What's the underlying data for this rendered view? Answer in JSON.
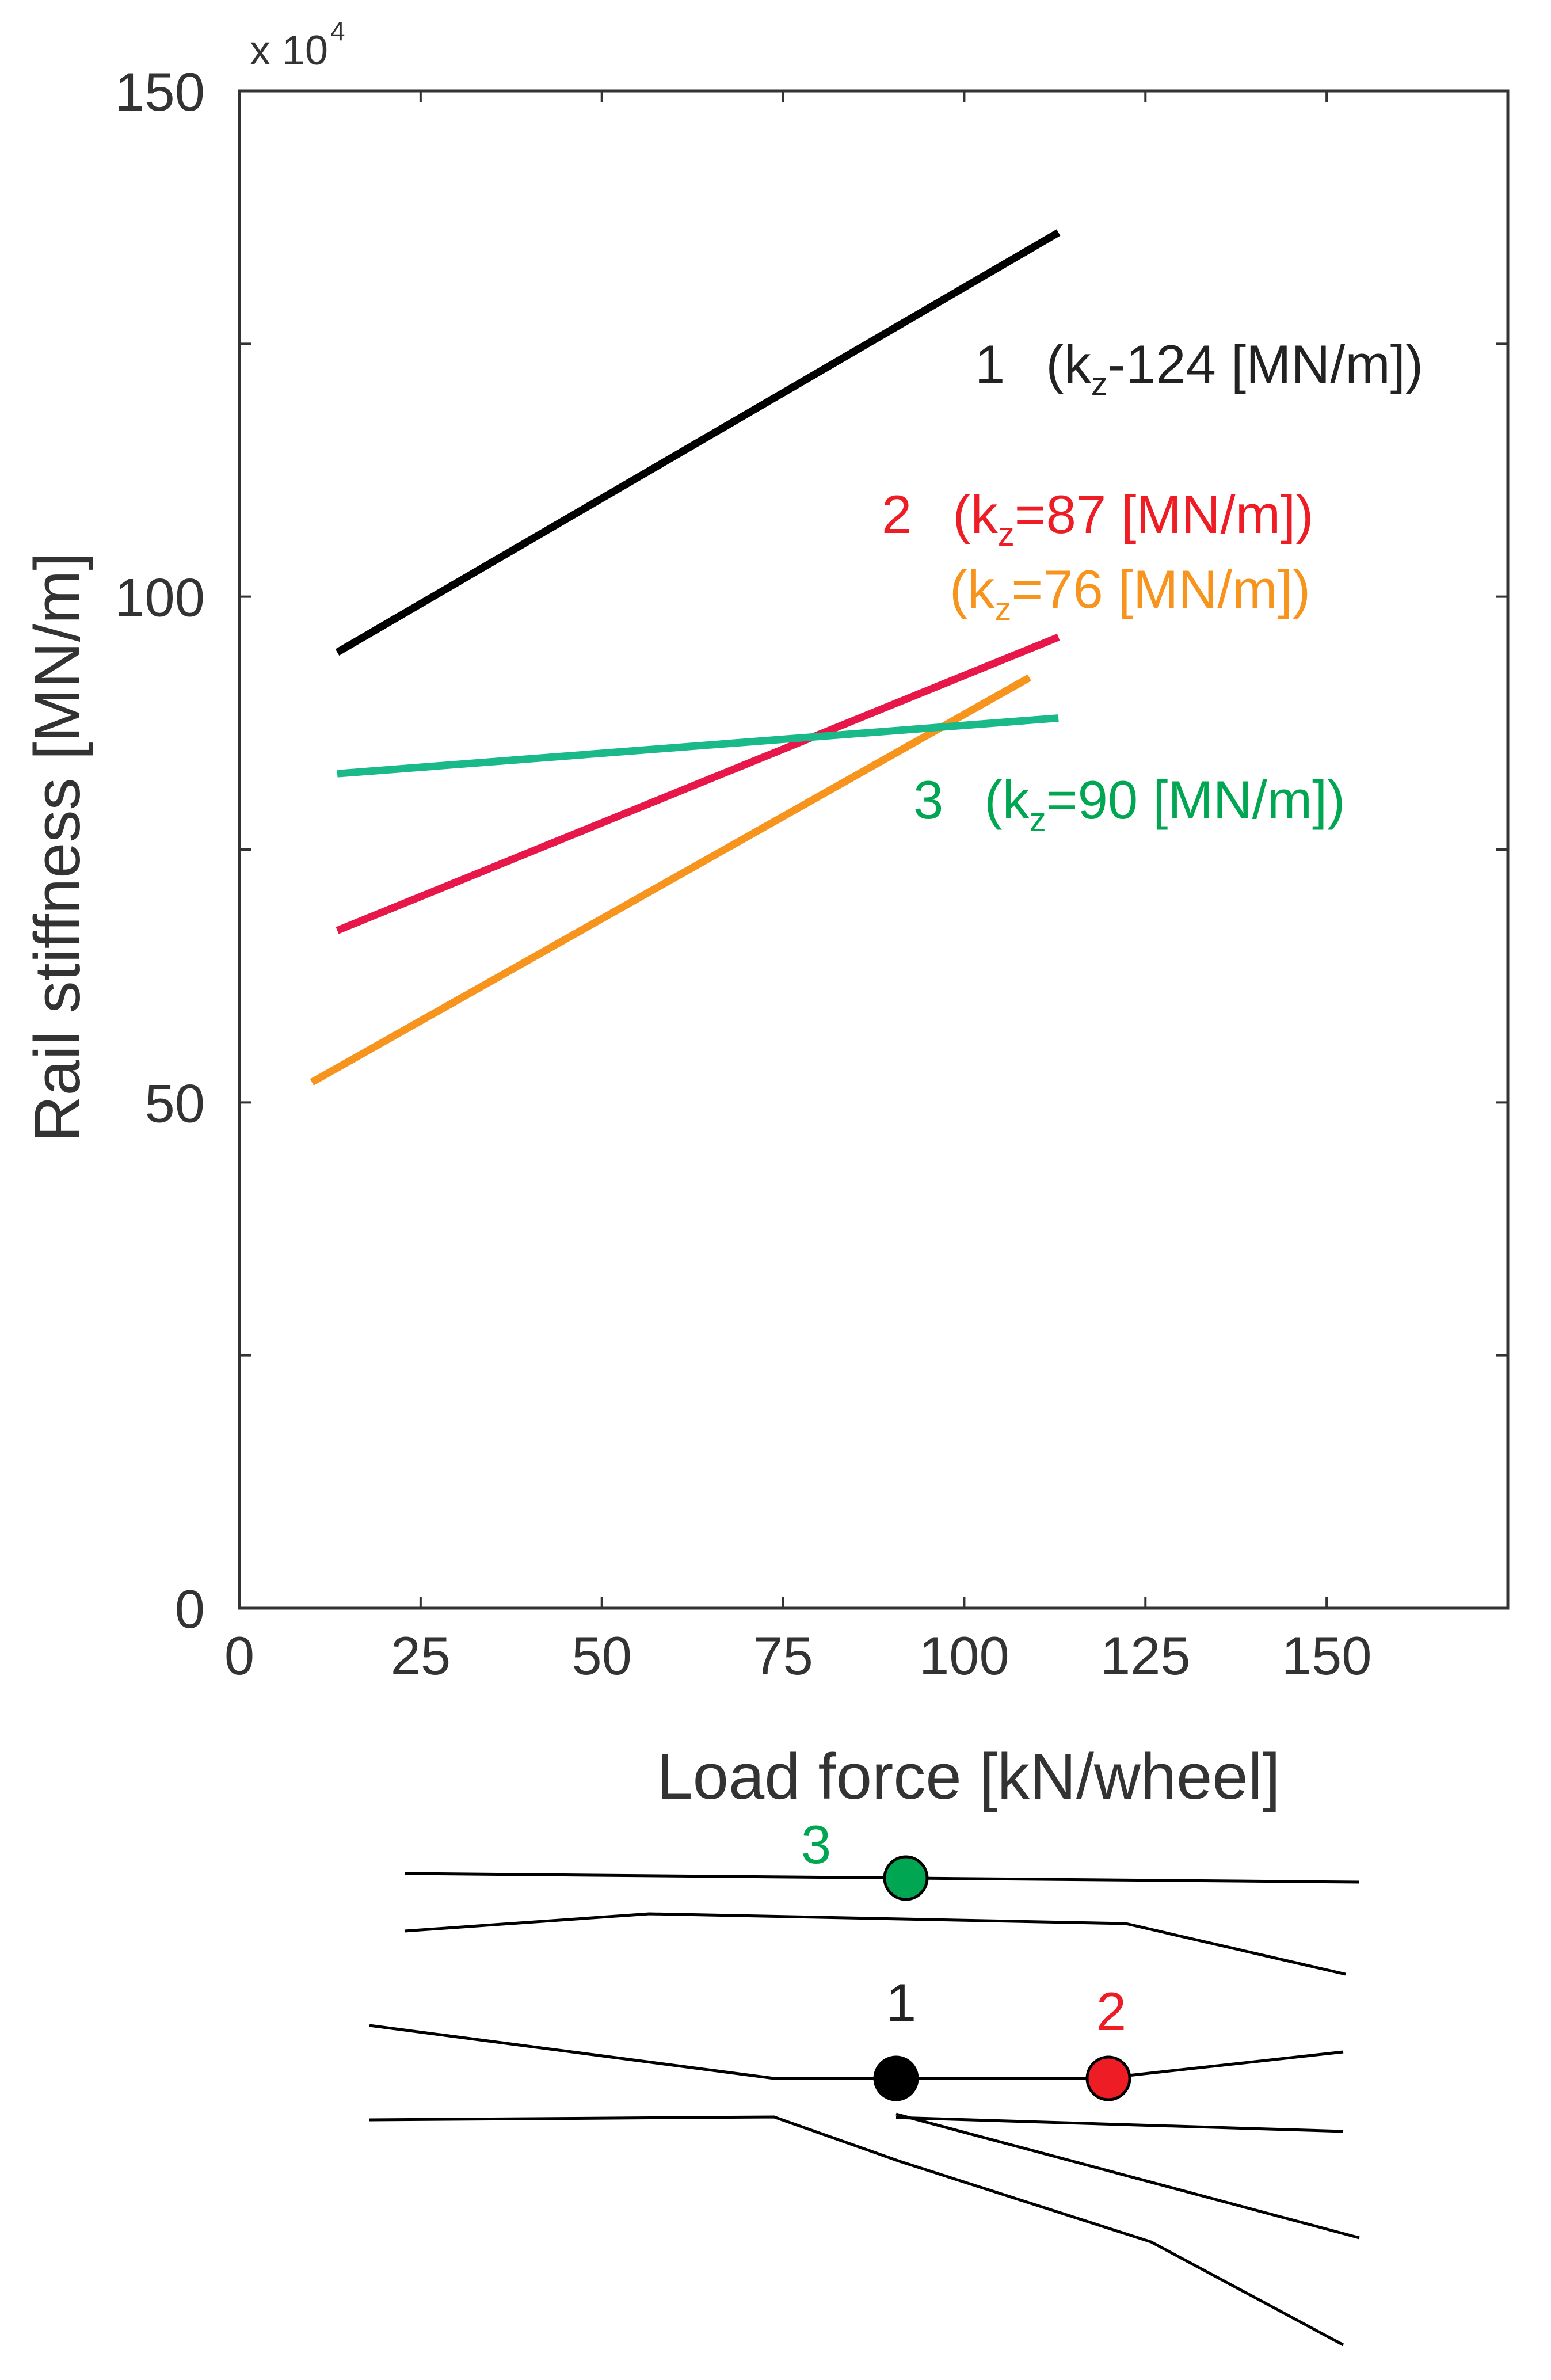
{
  "chart_data": {
    "type": "line",
    "title": "",
    "xlabel": "Load force [kN/wheel]",
    "ylabel": "Rail stiffness [MN/m]",
    "y_scale_note": "x 10",
    "y_scale_exponent": "4",
    "xlim": [
      0,
      175
    ],
    "ylim": [
      0,
      150
    ],
    "x_ticks": [
      0,
      25,
      50,
      75,
      100,
      125,
      150
    ],
    "x_tick_labels": [
      "0",
      "25",
      "50",
      "75",
      "100",
      "125",
      "150"
    ],
    "y_ticks": [
      0,
      25,
      50,
      75,
      100,
      125,
      150
    ],
    "y_tick_labels": [
      "0",
      "",
      "50",
      "",
      "100",
      "",
      "150"
    ],
    "grid": false,
    "series": [
      {
        "name": "1",
        "color": "#000000",
        "x": [
          13.5,
          113
        ],
        "y": [
          94.5,
          136
        ]
      },
      {
        "name": "2",
        "color": "#e8174a",
        "x": [
          13.5,
          113
        ],
        "y": [
          67,
          96
        ]
      },
      {
        "name": "2b",
        "color": "#f7941d",
        "x": [
          10,
          109
        ],
        "y": [
          52,
          92
        ]
      },
      {
        "name": "3",
        "color": "#1ab98a",
        "x": [
          13.5,
          113
        ],
        "y": [
          82.5,
          88
        ]
      }
    ],
    "annotations": [
      {
        "id": "1",
        "num": "1",
        "pre": "(k",
        "sub": "z",
        "post": "-124 [MN/m])",
        "color": "#222222"
      },
      {
        "id": "2",
        "num": "2",
        "pre": "(k",
        "sub": "z",
        "post": "=87 [MN/m])",
        "color": "#ee1c25"
      },
      {
        "id": "2b",
        "num": "",
        "pre": "(k",
        "sub": "z",
        "post": "=76 [MN/m])",
        "color": "#f7941d"
      },
      {
        "id": "3",
        "num": "3",
        "pre": "(k",
        "sub": "z",
        "post": "=90 [MN/m])",
        "color": "#00a651"
      }
    ]
  },
  "track_diagram": {
    "markers": [
      {
        "label": "3",
        "color": "#00a651",
        "label_color": "#00a651"
      },
      {
        "label": "1",
        "color": "#000000",
        "label_color": "#222222"
      },
      {
        "label": "2",
        "color": "#ee1c25",
        "label_color": "#ee1c25"
      }
    ]
  }
}
